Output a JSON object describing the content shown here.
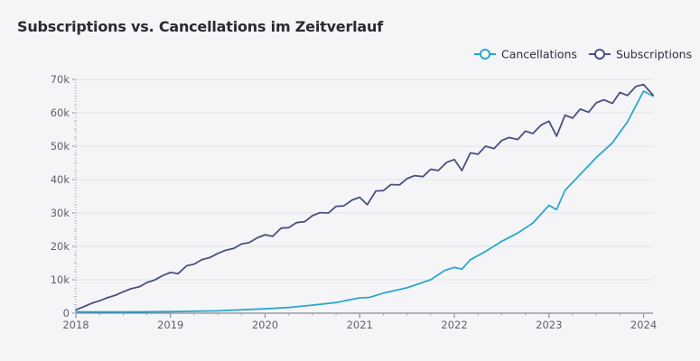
{
  "chart_data": {
    "type": "line",
    "title": "Subscriptions vs. Cancellations im Zeitverlauf",
    "xlabel": "",
    "ylabel": "",
    "x_range": [
      2018.0,
      2024.1
    ],
    "ylim": [
      0,
      70000
    ],
    "y_ticks": [
      0,
      10000,
      20000,
      30000,
      40000,
      50000,
      60000,
      70000
    ],
    "y_tick_labels": [
      "0",
      "10k",
      "20k",
      "30k",
      "40k",
      "50k",
      "60k",
      "70k"
    ],
    "x_ticks": [
      2018,
      2019,
      2020,
      2021,
      2022,
      2023,
      2024
    ],
    "x_tick_labels": [
      "2018",
      "2019",
      "2020",
      "2021",
      "2022",
      "2023",
      "2024"
    ],
    "grid": "horizontal",
    "legend_position": "top-right",
    "series": [
      {
        "name": "Cancellations",
        "color": "#29a8cc",
        "points": [
          [
            2018.0,
            400
          ],
          [
            2018.5,
            350
          ],
          [
            2019.0,
            450
          ],
          [
            2019.5,
            700
          ],
          [
            2020.0,
            1300
          ],
          [
            2020.25,
            1700
          ],
          [
            2020.5,
            2400
          ],
          [
            2020.75,
            3200
          ],
          [
            2021.0,
            4600
          ],
          [
            2021.1,
            4700
          ],
          [
            2021.25,
            6000
          ],
          [
            2021.5,
            7600
          ],
          [
            2021.75,
            10000
          ],
          [
            2021.9,
            12800
          ],
          [
            2022.0,
            13700
          ],
          [
            2022.08,
            13200
          ],
          [
            2022.17,
            16000
          ],
          [
            2022.33,
            18500
          ],
          [
            2022.5,
            21500
          ],
          [
            2022.67,
            24000
          ],
          [
            2022.83,
            27000
          ],
          [
            2023.0,
            32300
          ],
          [
            2023.08,
            31000
          ],
          [
            2023.17,
            36800
          ],
          [
            2023.33,
            41500
          ],
          [
            2023.5,
            46600
          ],
          [
            2023.67,
            51000
          ],
          [
            2023.83,
            57300
          ],
          [
            2024.0,
            66500
          ],
          [
            2024.1,
            65000
          ]
        ]
      },
      {
        "name": "Subscriptions",
        "color": "#4a5080",
        "points": [
          [
            2018.0,
            1000
          ],
          [
            2018.08,
            1900
          ],
          [
            2018.17,
            3000
          ],
          [
            2018.25,
            3700
          ],
          [
            2018.33,
            4600
          ],
          [
            2018.42,
            5400
          ],
          [
            2018.5,
            6400
          ],
          [
            2018.58,
            7300
          ],
          [
            2018.67,
            7900
          ],
          [
            2018.75,
            9200
          ],
          [
            2018.83,
            9900
          ],
          [
            2018.92,
            11300
          ],
          [
            2019.0,
            12200
          ],
          [
            2019.08,
            11800
          ],
          [
            2019.17,
            14200
          ],
          [
            2019.25,
            14700
          ],
          [
            2019.33,
            16000
          ],
          [
            2019.42,
            16700
          ],
          [
            2019.5,
            17900
          ],
          [
            2019.58,
            18800
          ],
          [
            2019.67,
            19400
          ],
          [
            2019.75,
            20700
          ],
          [
            2019.83,
            21100
          ],
          [
            2019.92,
            22600
          ],
          [
            2020.0,
            23500
          ],
          [
            2020.08,
            23000
          ],
          [
            2020.17,
            25500
          ],
          [
            2020.25,
            25600
          ],
          [
            2020.33,
            27100
          ],
          [
            2020.42,
            27400
          ],
          [
            2020.5,
            29200
          ],
          [
            2020.58,
            30100
          ],
          [
            2020.67,
            30000
          ],
          [
            2020.75,
            32000
          ],
          [
            2020.83,
            32100
          ],
          [
            2020.92,
            33900
          ],
          [
            2021.0,
            34700
          ],
          [
            2021.08,
            32500
          ],
          [
            2021.17,
            36600
          ],
          [
            2021.25,
            36700
          ],
          [
            2021.33,
            38500
          ],
          [
            2021.42,
            38400
          ],
          [
            2021.5,
            40300
          ],
          [
            2021.58,
            41200
          ],
          [
            2021.67,
            40900
          ],
          [
            2021.75,
            43100
          ],
          [
            2021.83,
            42700
          ],
          [
            2021.92,
            45200
          ],
          [
            2022.0,
            46000
          ],
          [
            2022.08,
            42700
          ],
          [
            2022.17,
            48000
          ],
          [
            2022.25,
            47600
          ],
          [
            2022.33,
            50000
          ],
          [
            2022.42,
            49300
          ],
          [
            2022.5,
            51700
          ],
          [
            2022.58,
            52600
          ],
          [
            2022.67,
            52000
          ],
          [
            2022.75,
            54500
          ],
          [
            2022.83,
            53800
          ],
          [
            2022.92,
            56400
          ],
          [
            2023.0,
            57500
          ],
          [
            2023.08,
            53000
          ],
          [
            2023.17,
            59300
          ],
          [
            2023.25,
            58400
          ],
          [
            2023.33,
            61100
          ],
          [
            2023.42,
            60200
          ],
          [
            2023.5,
            63000
          ],
          [
            2023.58,
            63900
          ],
          [
            2023.67,
            62800
          ],
          [
            2023.75,
            66100
          ],
          [
            2023.83,
            65200
          ],
          [
            2023.92,
            67900
          ],
          [
            2024.0,
            68500
          ],
          [
            2024.1,
            65300
          ]
        ]
      }
    ]
  }
}
